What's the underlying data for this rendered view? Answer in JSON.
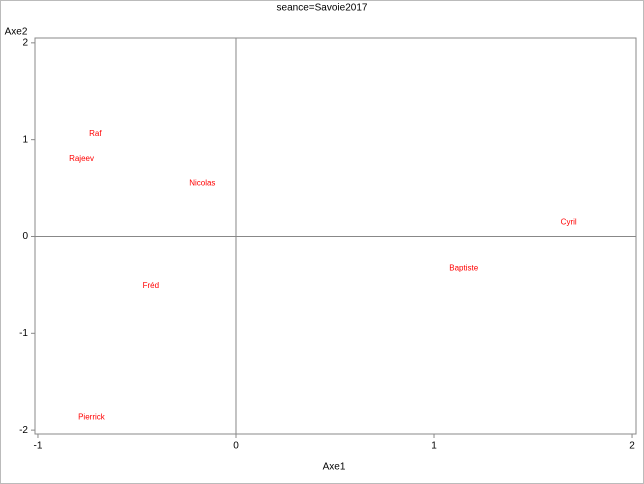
{
  "chart_data": {
    "type": "scatter",
    "title": "seance=Savoie2017",
    "x_label": "Axe1",
    "y_label": "Axe2",
    "labels": [
      "Raf",
      "Rajeev",
      "Nicolas",
      "Cyril",
      "Baptiste",
      "Fréd",
      "Pierrick"
    ],
    "x": [
      -0.71,
      -0.78,
      -0.17,
      1.68,
      1.15,
      -0.43,
      -0.73
    ],
    "y": [
      1.06,
      0.8,
      0.55,
      0.145,
      -0.33,
      -0.51,
      -1.87
    ],
    "color": "#ff0000",
    "xlim": [
      -1.015,
      2.02
    ],
    "ylim": [
      -2.04,
      2.05
    ],
    "xticks": [
      -1,
      0,
      1,
      2
    ],
    "yticks": [
      -2,
      -1,
      0,
      1,
      2
    ],
    "reference_lines": {
      "x": 0,
      "y": 0
    }
  }
}
